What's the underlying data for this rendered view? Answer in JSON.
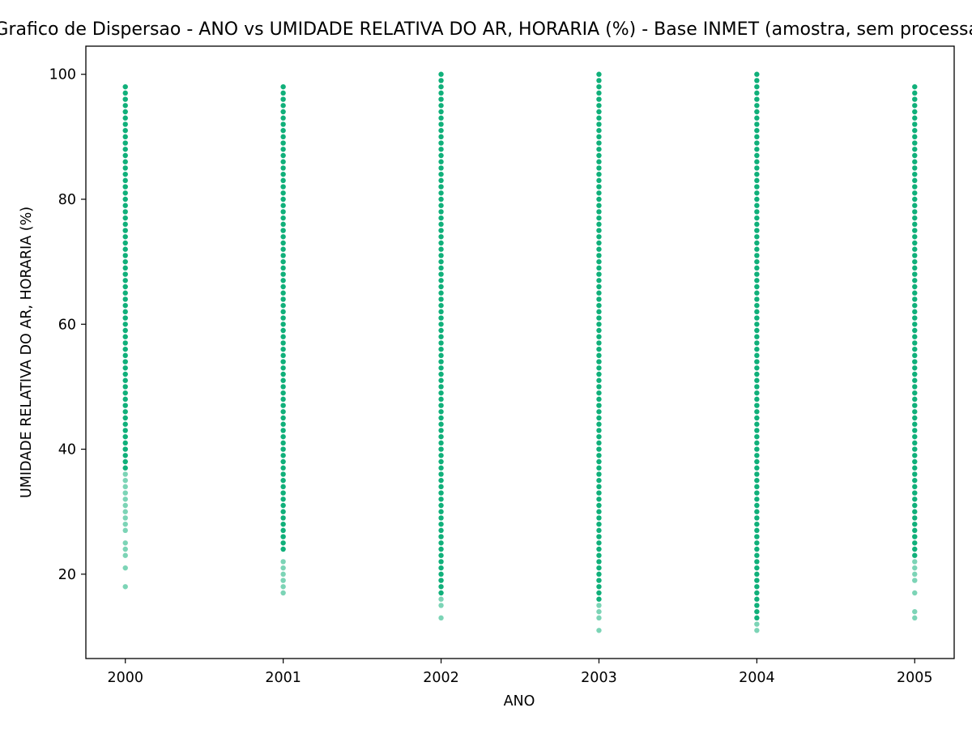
{
  "chart_data": {
    "type": "scatter",
    "title": "Grafico de Dispersao - ANO vs UMIDADE RELATIVA DO AR, HORARIA (%) - Base INMET (amostra, sem processamento)",
    "xlabel": "ANO",
    "ylabel": "UMIDADE RELATIVA DO AR, HORARIA (%)",
    "xlim": [
      1999.75,
      2005.25
    ],
    "ylim": [
      6.5,
      104.5
    ],
    "x_ticks": [
      2000,
      2001,
      2002,
      2003,
      2004,
      2005
    ],
    "y_ticks": [
      20,
      40,
      60,
      80,
      100
    ],
    "grid": false,
    "color": "#10b07a",
    "series": [
      {
        "x": 2000,
        "dense_range": [
          37,
          98
        ],
        "sparse_values": [
          36,
          35,
          34,
          33,
          32,
          31,
          30,
          29,
          28,
          27,
          25,
          24,
          23,
          21,
          18
        ]
      },
      {
        "x": 2001,
        "dense_range": [
          24,
          98
        ],
        "sparse_values": [
          22,
          21,
          20,
          19,
          18,
          17
        ]
      },
      {
        "x": 2002,
        "dense_range": [
          17,
          100
        ],
        "sparse_values": [
          16,
          15,
          13
        ]
      },
      {
        "x": 2003,
        "dense_range": [
          16,
          100
        ],
        "sparse_values": [
          15,
          14,
          13,
          11
        ]
      },
      {
        "x": 2004,
        "dense_range": [
          13,
          100
        ],
        "sparse_values": [
          12,
          11
        ]
      },
      {
        "x": 2005,
        "dense_range": [
          23,
          98
        ],
        "sparse_values": [
          22,
          21,
          20,
          19,
          17,
          14,
          13
        ]
      }
    ]
  }
}
